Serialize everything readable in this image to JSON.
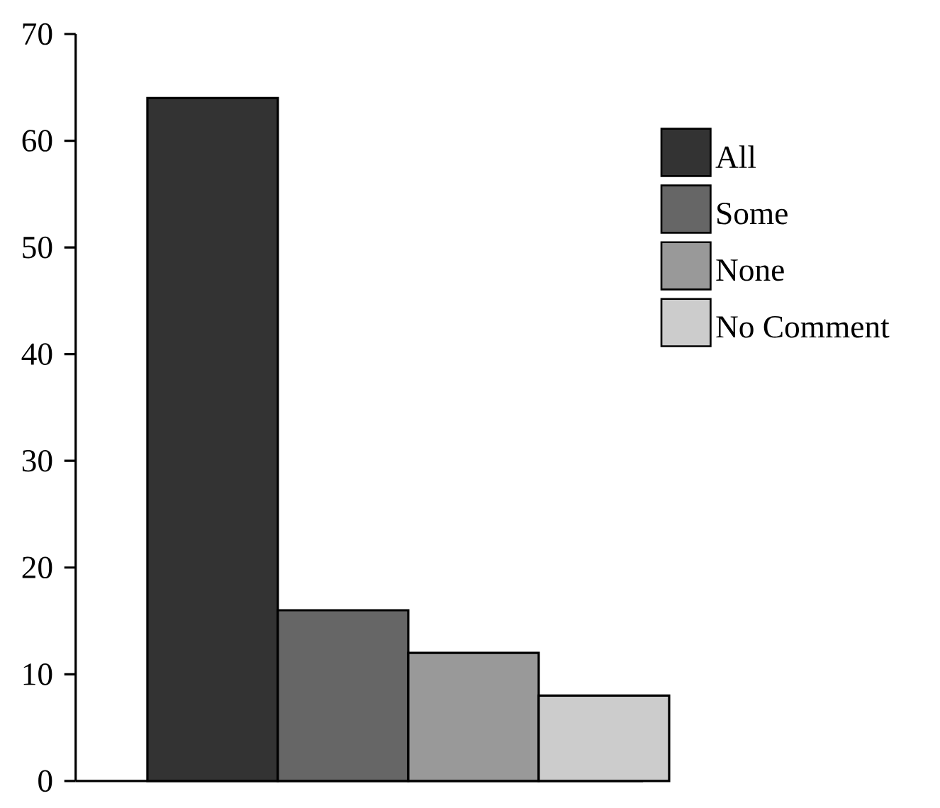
{
  "chart_data": {
    "type": "bar",
    "categories": [
      null,
      null,
      null,
      null
    ],
    "series": [
      {
        "name": "All",
        "color": "#333333",
        "values": [
          64,
          null,
          null,
          null
        ]
      },
      {
        "name": "Some",
        "color": "#666666",
        "values": [
          null,
          16,
          null,
          null
        ]
      },
      {
        "name": "None",
        "color": "#999999",
        "values": [
          null,
          null,
          12,
          null
        ]
      },
      {
        "name": "No Comment",
        "color": "#cccccc",
        "values": [
          null,
          null,
          null,
          8
        ]
      }
    ],
    "ylim": [
      0,
      70
    ],
    "yticks": [
      0,
      10,
      20,
      30,
      40,
      50,
      60,
      70
    ],
    "grid": false,
    "legend": "right",
    "tick_labels": "y"
  }
}
